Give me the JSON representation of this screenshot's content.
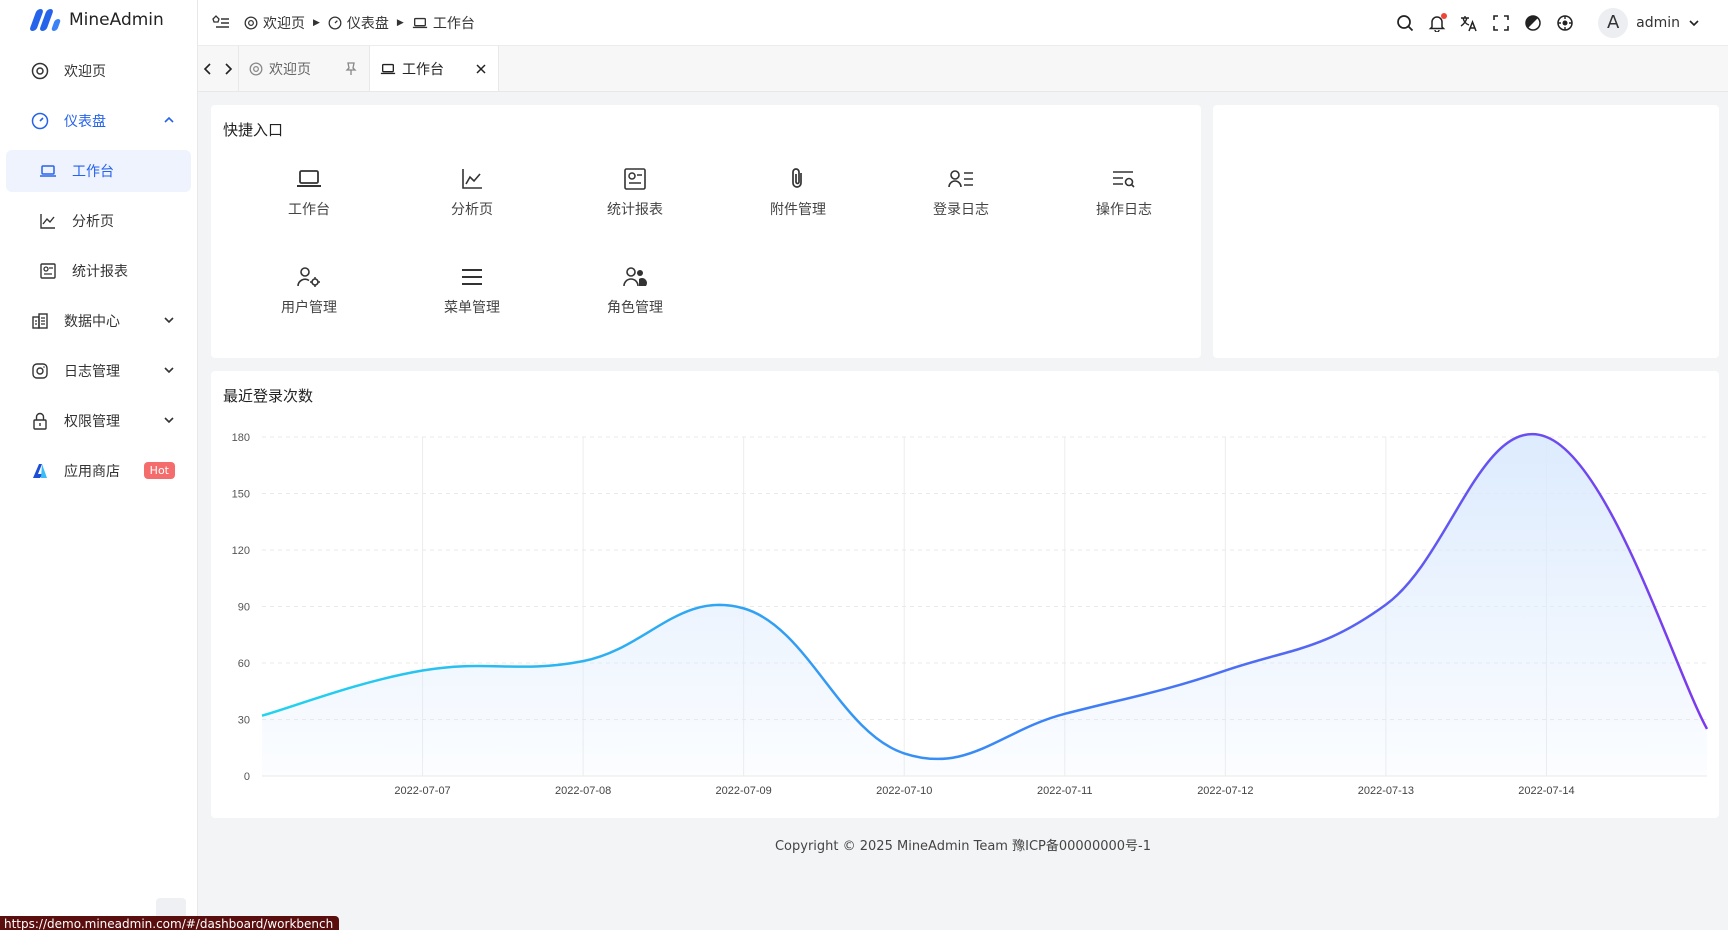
{
  "app": {
    "name": "MineAdmin",
    "brand_color": "#2563eb"
  },
  "sidebar": {
    "items": [
      {
        "label": "欢迎页"
      },
      {
        "label": "仪表盘"
      },
      {
        "label": "工作台"
      },
      {
        "label": "分析页"
      },
      {
        "label": "统计报表"
      },
      {
        "label": "数据中心"
      },
      {
        "label": "日志管理"
      },
      {
        "label": "权限管理"
      },
      {
        "label": "应用商店",
        "badge": "Hot"
      }
    ]
  },
  "header": {
    "breadcrumb": [
      "欢迎页",
      "仪表盘",
      "工作台"
    ],
    "user": {
      "avatar_letter": "A",
      "name": "admin"
    }
  },
  "tabs": [
    {
      "label": "欢迎页"
    },
    {
      "label": "工作台"
    }
  ],
  "quick": {
    "title": "快捷入口",
    "items": [
      "工作台",
      "分析页",
      "统计报表",
      "附件管理",
      "登录日志",
      "操作日志",
      "用户管理",
      "菜单管理",
      "角色管理"
    ]
  },
  "chart_data": {
    "type": "area",
    "title": "最近登录次数",
    "x": [
      "",
      "2022-07-07",
      "2022-07-08",
      "2022-07-09",
      "2022-07-10",
      "2022-07-11",
      "2022-07-12",
      "2022-07-13",
      "2022-07-14",
      ""
    ],
    "series": [
      {
        "values": [
          32,
          56,
          61,
          89,
          12,
          33,
          56,
          91,
          180,
          25
        ]
      }
    ],
    "yticks": [
      0,
      30,
      60,
      90,
      120,
      150,
      180
    ],
    "ylim": [
      0,
      180
    ],
    "line_gradient": [
      "#22d3ee",
      "#7c3aed"
    ],
    "area_color": "#dbeafe"
  },
  "footer": {
    "text": "Copyright © 2025 MineAdmin Team 豫ICP备00000000号-1"
  },
  "status": {
    "url": "https://demo.mineadmin.com/#/dashboard/workbench"
  }
}
